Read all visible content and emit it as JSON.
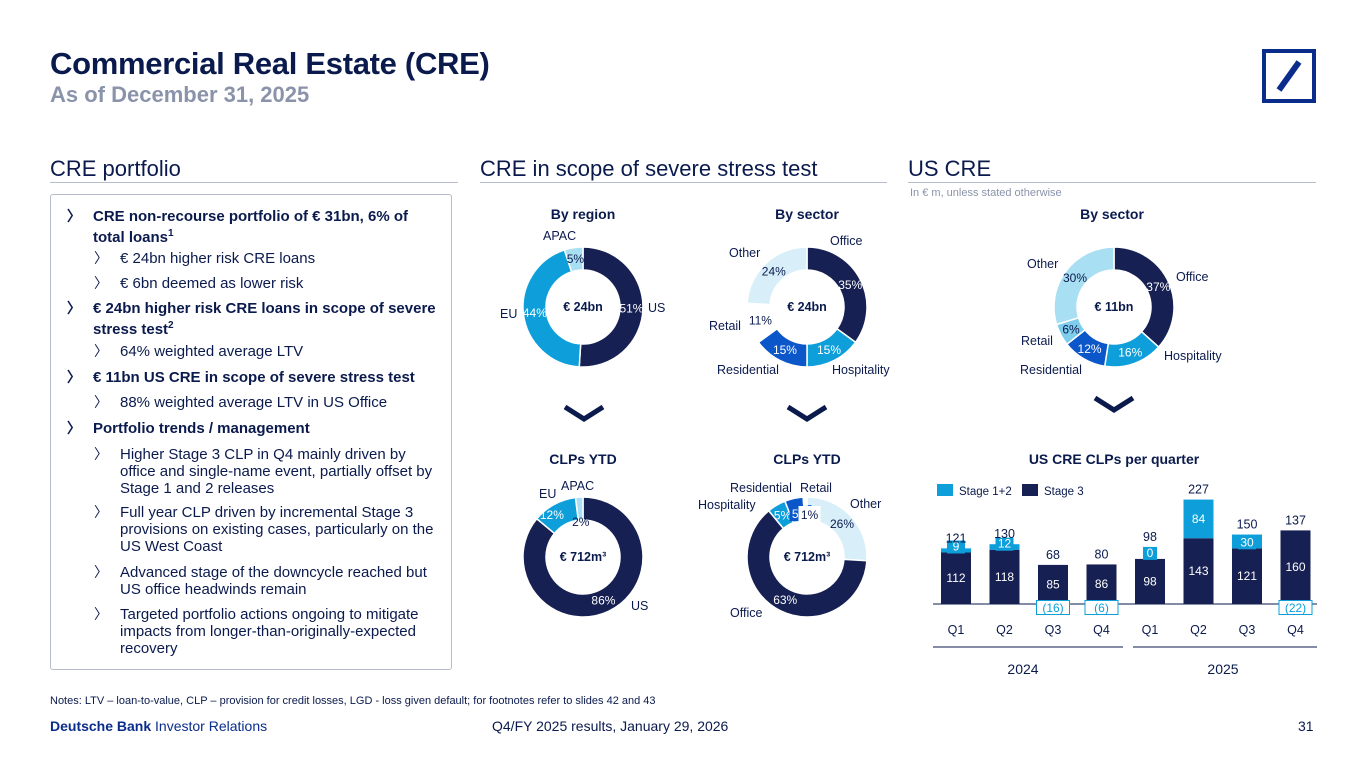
{
  "header": {
    "title": "Commercial Real Estate (CRE)",
    "subtitle": "As of December 31, 2025"
  },
  "logo": {
    "icon": "deutsche-bank-slash-logo",
    "color": "#0a2d8c"
  },
  "colors": {
    "navy": "#162052",
    "mid_blue": "#0b56c8",
    "cyan": "#0e9fdb",
    "light": "#a9dff2",
    "text": "#0a1a4d",
    "grey": "#8a93aa"
  },
  "sections": {
    "portfolio": "CRE portfolio",
    "stress": "CRE in scope of severe stress test",
    "us": "US CRE",
    "us_note": "In € m, unless stated otherwise"
  },
  "bullets": [
    {
      "level": 1,
      "bold": true,
      "text": "CRE non-recourse portfolio of € 31bn, 6% of total loans",
      "sup": "1"
    },
    {
      "level": 2,
      "bold": false,
      "text": "€ 24bn higher risk CRE loans"
    },
    {
      "level": 2,
      "bold": false,
      "text": "€ 6bn deemed as lower risk"
    },
    {
      "level": 1,
      "bold": true,
      "text": "€ 24bn higher risk CRE loans in scope of severe stress test",
      "sup": "2"
    },
    {
      "level": 2,
      "bold": false,
      "text": "64% weighted average LTV"
    },
    {
      "level": 1,
      "bold": true,
      "text": "€ 11bn US CRE in scope of severe stress test"
    },
    {
      "level": 2,
      "bold": false,
      "text": "88% weighted average LTV in US Office"
    },
    {
      "level": 1,
      "bold": true,
      "text": "Portfolio trends / management"
    },
    {
      "level": 2,
      "bold": false,
      "text": "Higher Stage 3 CLP in Q4 mainly driven by office and single-name event, partially offset by Stage 1 and 2 releases"
    },
    {
      "level": 2,
      "bold": false,
      "text": "Full year CLP driven by incremental Stage 3 provisions on existing cases, particularly on the US West Coast"
    },
    {
      "level": 2,
      "bold": false,
      "text": "Advanced stage of the downcycle reached but US office headwinds remain"
    },
    {
      "level": 2,
      "bold": false,
      "text": "Targeted portfolio actions ongoing to mitigate impacts from longer-than-originally-expected recovery"
    }
  ],
  "bullet_marker": "〉",
  "chevron": "❯",
  "chart_data": [
    {
      "type": "pie",
      "id": "region",
      "title": "By region",
      "center": "€ 24bn",
      "slices": [
        {
          "label": "US",
          "value": 51,
          "text": "51%",
          "color": "#162052",
          "tcolor": "#ffffff"
        },
        {
          "label": "EU",
          "value": 44,
          "text": "44%",
          "color": "#0e9fdb",
          "tcolor": "#ffffff"
        },
        {
          "label": "APAC",
          "value": 5,
          "text": "5%",
          "color": "#a9dff2",
          "tcolor": "#0a1a4d"
        }
      ]
    },
    {
      "type": "pie",
      "id": "sector",
      "title": "By sector",
      "center": "€ 24bn",
      "slices": [
        {
          "label": "Office",
          "value": 35,
          "text": "35%",
          "color": "#162052",
          "tcolor": "#ffffff"
        },
        {
          "label": "Hospitality",
          "value": 15,
          "text": "15%",
          "color": "#0e9fdb",
          "tcolor": "#ffffff"
        },
        {
          "label": "Residential",
          "value": 15,
          "text": "15%",
          "color": "#0b56c8",
          "tcolor": "#ffffff"
        },
        {
          "label": "Retail",
          "value": 11,
          "text": "11%",
          "color": "#ffffff",
          "tcolor": "#0a1a4d"
        },
        {
          "label": "Other",
          "value": 24,
          "text": "24%",
          "color": "#d8eff9",
          "tcolor": "#0a1a4d"
        }
      ]
    },
    {
      "type": "pie",
      "id": "us_sector",
      "title": "By sector",
      "center": "€ 11bn",
      "slices": [
        {
          "label": "Office",
          "value": 37,
          "text": "37%",
          "color": "#162052",
          "tcolor": "#ffffff"
        },
        {
          "label": "Hospitality",
          "value": 16,
          "text": "16%",
          "color": "#0e9fdb",
          "tcolor": "#ffffff"
        },
        {
          "label": "Residential",
          "value": 12,
          "text": "12%",
          "color": "#0b56c8",
          "tcolor": "#ffffff"
        },
        {
          "label": "Retail",
          "value": 6,
          "text": "6%",
          "color": "#7fcdec",
          "tcolor": "#0a1a4d"
        },
        {
          "label": "Other",
          "value": 30,
          "text": "30%",
          "color": "#a9dff2",
          "tcolor": "#0a1a4d"
        }
      ]
    },
    {
      "type": "pie",
      "id": "clp_region",
      "title": "CLPs YTD",
      "center": "€ 712m³",
      "slices": [
        {
          "label": "US",
          "value": 86,
          "text": "86%",
          "color": "#162052",
          "tcolor": "#ffffff"
        },
        {
          "label": "EU",
          "value": 12,
          "text": "12%",
          "color": "#0e9fdb",
          "tcolor": "#ffffff"
        },
        {
          "label": "APAC",
          "value": 2,
          "text": "2%",
          "color": "#a9dff2",
          "tcolor": "#0a1a4d"
        }
      ]
    },
    {
      "type": "pie",
      "id": "clp_sector",
      "title": "CLPs YTD",
      "center": "€ 712m³",
      "slices": [
        {
          "label": "Other",
          "value": 26,
          "text": "26%",
          "color": "#d8eff9",
          "tcolor": "#0a1a4d"
        },
        {
          "label": "Office",
          "value": 63,
          "text": "63%",
          "color": "#162052",
          "tcolor": "#ffffff"
        },
        {
          "label": "Hospitality",
          "value": 5,
          "text": "5%",
          "color": "#0e9fdb",
          "tcolor": "#ffffff"
        },
        {
          "label": "Residential",
          "value": 5,
          "text": "5%",
          "color": "#0b56c8",
          "tcolor": "#ffffff"
        },
        {
          "label": "Retail",
          "value": 1,
          "text": "1%",
          "color": "#ffffff",
          "tcolor": "#0a1a4d"
        }
      ]
    },
    {
      "type": "bar",
      "id": "us_clp",
      "title": "US CRE CLPs per quarter",
      "legend": [
        "Stage 1+2",
        "Stage 3"
      ],
      "series_colors": [
        "#0e9fdb",
        "#162052"
      ],
      "categories": [
        "Q1",
        "Q2",
        "Q3",
        "Q4",
        "Q1",
        "Q2",
        "Q3",
        "Q4"
      ],
      "years": [
        "2024",
        "2025"
      ],
      "stage3": [
        112,
        118,
        85,
        86,
        98,
        143,
        121,
        160
      ],
      "stage12": [
        9,
        12,
        -16,
        -6,
        0,
        84,
        30,
        -22
      ],
      "stage3_labels": [
        "112",
        "118",
        "85",
        "86",
        "98",
        "143",
        "121",
        "160"
      ],
      "stage12_labels": [
        "9",
        "12",
        "(16)",
        "(6)",
        "0",
        "84",
        "30",
        "(22)"
      ],
      "totals": [
        121,
        130,
        68,
        80,
        98,
        227,
        150,
        137
      ],
      "total_labels": [
        "121",
        "130",
        "68",
        "80",
        "98",
        "227",
        "150",
        "137"
      ]
    }
  ],
  "footer": {
    "notes": "Notes: LTV – loan-to-value, CLP – provision for credit losses, LGD - loss given default; for footnotes refer to slides 42 and 43",
    "brand_bold": "Deutsche Bank",
    "brand_rest": "Investor Relations",
    "center": "Q4/FY 2025 results, January 29, 2026",
    "page": "31"
  }
}
